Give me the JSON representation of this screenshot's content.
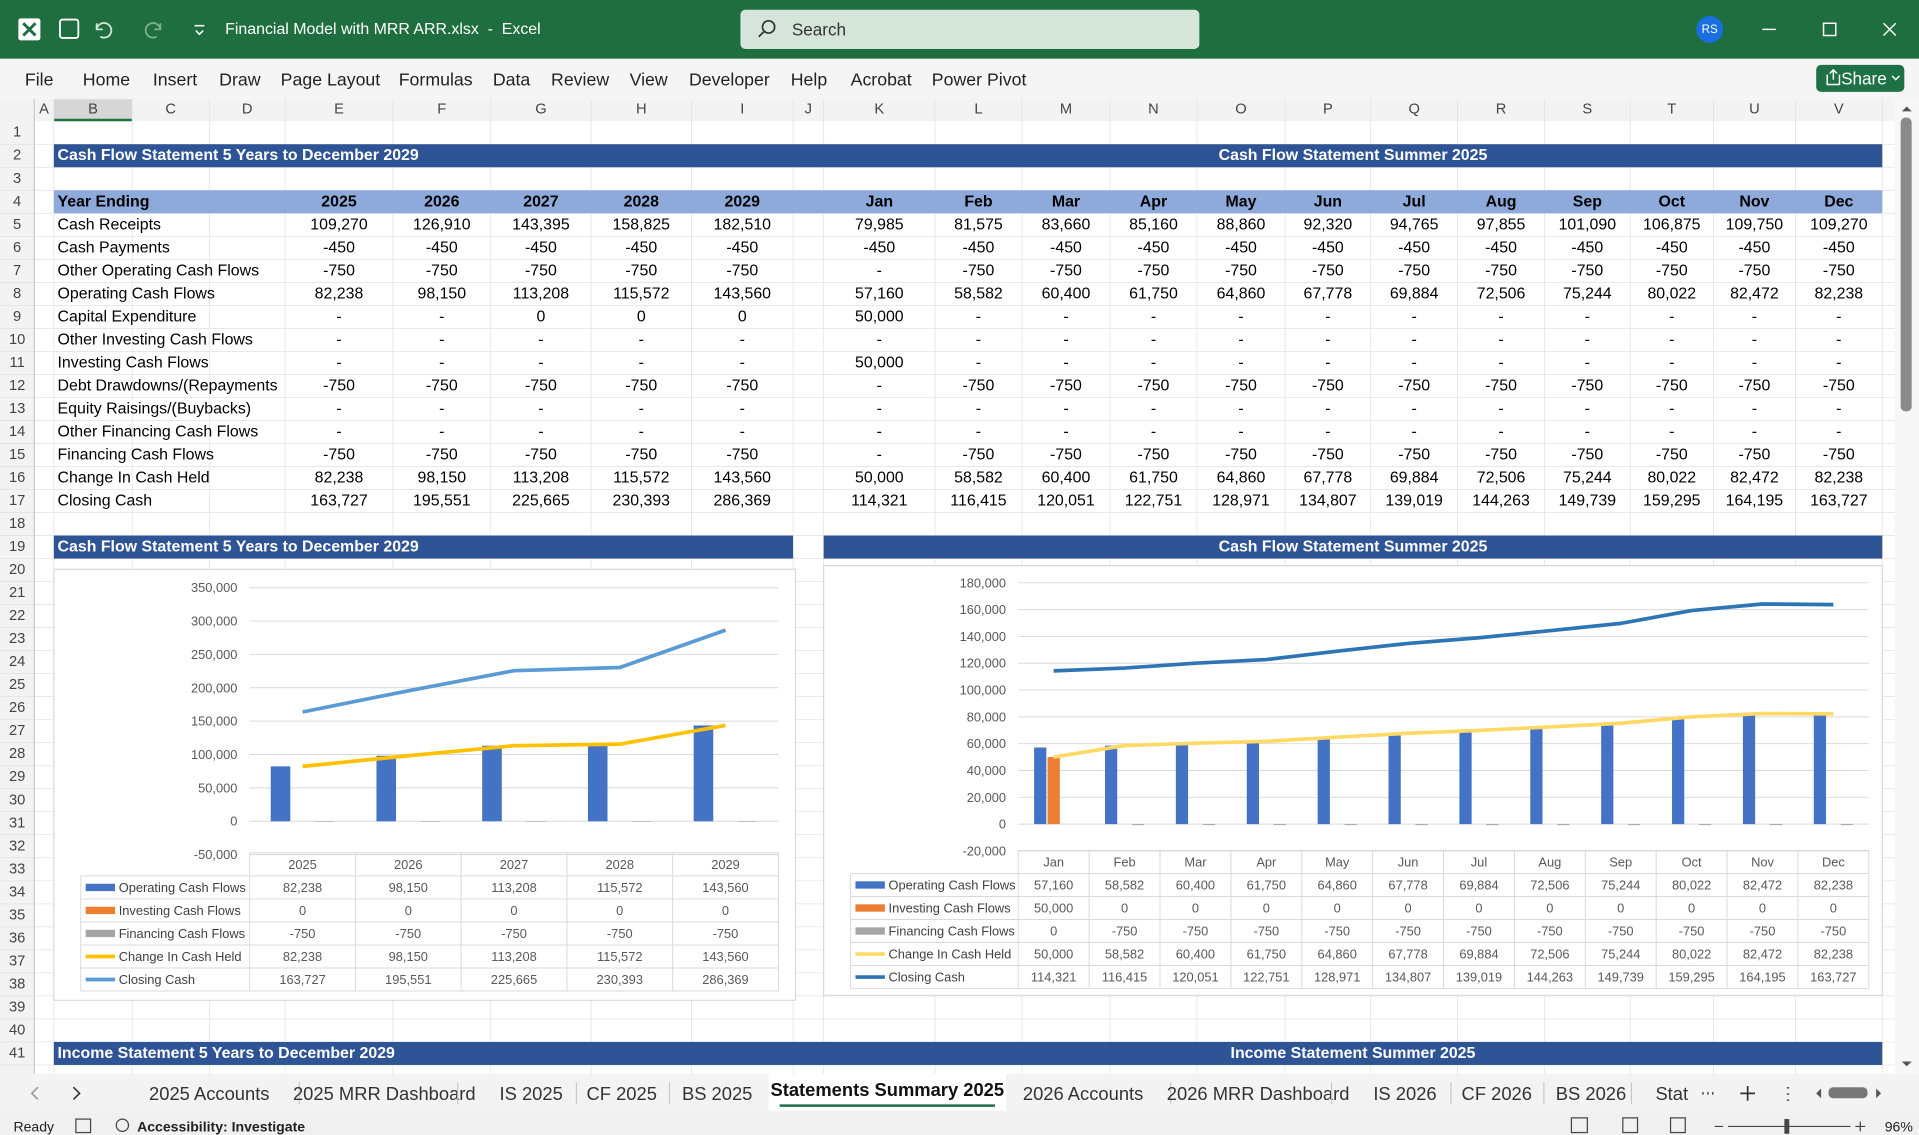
{
  "window": {
    "title": "Financial Model with MRR ARR.xlsx  -  Excel",
    "search": "Search",
    "user": "RS"
  },
  "ribbon": {
    "tabs": [
      "File",
      "Home",
      "Insert",
      "Draw",
      "Page Layout",
      "Formulas",
      "Data",
      "Review",
      "View",
      "Developer",
      "Help",
      "Acrobat",
      "Power Pivot"
    ],
    "share": "Share"
  },
  "sheet": {
    "columns": [
      "A",
      "B",
      "C",
      "D",
      "E",
      "F",
      "G",
      "H",
      "I",
      "J",
      "K",
      "L",
      "M",
      "N",
      "O",
      "P",
      "Q",
      "R",
      "S",
      "T",
      "U",
      "V"
    ],
    "rows": [
      1,
      2,
      3,
      4,
      5,
      6,
      7,
      8,
      9,
      10,
      11,
      12,
      13,
      14,
      15,
      16,
      17,
      18,
      19,
      20,
      21,
      22,
      23,
      24,
      25,
      26,
      27,
      28,
      29,
      30,
      31,
      32,
      33,
      34,
      35,
      36,
      37,
      38,
      39,
      40,
      41
    ],
    "cash_flow": {
      "title": "Cash Flow Statement 5 Years to December 2029",
      "monthly_title": "Cash Flow Statement Summer 2025",
      "header": [
        "Year Ending",
        "2025",
        "2026",
        "2027",
        "2028",
        "2029",
        "Jan",
        "Feb",
        "Mar",
        "Apr",
        "May",
        "Jun",
        "Jul",
        "Aug",
        "Sep",
        "Oct",
        "Nov",
        "Dec"
      ],
      "lines": [
        {
          "label": "Cash Receipts",
          "cells": [
            "109,270",
            "126,910",
            "143,395",
            "158,825",
            "182,510",
            "79,985",
            "81,575",
            "83,660",
            "85,160",
            "88,860",
            "92,320",
            "94,765",
            "97,855",
            "101,090",
            "106,875",
            "109,750",
            "109,270"
          ]
        },
        {
          "label": "Cash Payments",
          "cells": [
            "-450",
            "-450",
            "-450",
            "-450",
            "-450",
            "-450",
            "-450",
            "-450",
            "-450",
            "-450",
            "-450",
            "-450",
            "-450",
            "-450",
            "-450",
            "-450",
            "-450"
          ]
        },
        {
          "label": "Other Operating Cash Flows",
          "cells": [
            "-750",
            "-750",
            "-750",
            "-750",
            "-750",
            "-",
            "-750",
            "-750",
            "-750",
            "-750",
            "-750",
            "-750",
            "-750",
            "-750",
            "-750",
            "-750",
            "-750"
          ]
        },
        {
          "label": "Operating Cash Flows",
          "cells": [
            "82,238",
            "98,150",
            "113,208",
            "115,572",
            "143,560",
            "57,160",
            "58,582",
            "60,400",
            "61,750",
            "64,860",
            "67,778",
            "69,884",
            "72,506",
            "75,244",
            "80,022",
            "82,472",
            "82,238"
          ]
        },
        {
          "label": "Capital Expenditure",
          "cells": [
            "-",
            "-",
            "0",
            "0",
            "0",
            "50,000",
            "-",
            "-",
            "-",
            "-",
            "-",
            "-",
            "-",
            "-",
            "-",
            "-",
            "-"
          ]
        },
        {
          "label": "Other Investing Cash Flows",
          "cells": [
            "-",
            "-",
            "-",
            "-",
            "-",
            "-",
            "-",
            "-",
            "-",
            "-",
            "-",
            "-",
            "-",
            "-",
            "-",
            "-",
            "-"
          ]
        },
        {
          "label": "Investing Cash Flows",
          "cells": [
            "-",
            "-",
            "-",
            "-",
            "-",
            "50,000",
            "-",
            "-",
            "-",
            "-",
            "-",
            "-",
            "-",
            "-",
            "-",
            "-",
            "-"
          ]
        },
        {
          "label": "Debt Drawdowns/(Repayments",
          "cells": [
            "-750",
            "-750",
            "-750",
            "-750",
            "-750",
            "-",
            "-750",
            "-750",
            "-750",
            "-750",
            "-750",
            "-750",
            "-750",
            "-750",
            "-750",
            "-750",
            "-750"
          ]
        },
        {
          "label": "Equity Raisings/(Buybacks)",
          "cells": [
            "-",
            "-",
            "-",
            "-",
            "-",
            "-",
            "-",
            "-",
            "-",
            "-",
            "-",
            "-",
            "-",
            "-",
            "-",
            "-",
            "-"
          ]
        },
        {
          "label": "Other Financing Cash Flows",
          "cells": [
            "-",
            "-",
            "-",
            "-",
            "-",
            "-",
            "-",
            "-",
            "-",
            "-",
            "-",
            "-",
            "-",
            "-",
            "-",
            "-",
            "-"
          ]
        },
        {
          "label": "Financing Cash Flows",
          "cells": [
            "-750",
            "-750",
            "-750",
            "-750",
            "-750",
            "-",
            "-750",
            "-750",
            "-750",
            "-750",
            "-750",
            "-750",
            "-750",
            "-750",
            "-750",
            "-750",
            "-750"
          ]
        },
        {
          "label": "Change In Cash Held",
          "cells": [
            "82,238",
            "98,150",
            "113,208",
            "115,572",
            "143,560",
            "50,000",
            "58,582",
            "60,400",
            "61,750",
            "64,860",
            "67,778",
            "69,884",
            "72,506",
            "75,244",
            "80,022",
            "82,472",
            "82,238"
          ]
        },
        {
          "label": "Closing Cash",
          "cells": [
            "163,727",
            "195,551",
            "225,665",
            "230,393",
            "286,369",
            "114,321",
            "116,415",
            "120,051",
            "122,751",
            "128,971",
            "134,807",
            "139,019",
            "144,263",
            "149,739",
            "159,295",
            "164,195",
            "163,727"
          ]
        }
      ]
    },
    "income": {
      "title": "Income Statement 5 Years to December 2029",
      "monthly_title": "Income Statement Summer 2025"
    }
  },
  "chart_data": [
    {
      "type": "combo",
      "title": "Cash Flow Statement 5 Years to December 2029",
      "categories": [
        "2025",
        "2026",
        "2027",
        "2028",
        "2029"
      ],
      "ylim": [
        -50000,
        350000
      ],
      "yticks": [
        {
          "value": -50000,
          "label": "-50,000"
        },
        0,
        {
          "value": 50000,
          "label": "50,000"
        },
        {
          "value": 100000,
          "label": "100,000"
        },
        {
          "value": 150000,
          "label": "150,000"
        },
        {
          "value": 200000,
          "label": "200,000"
        },
        {
          "value": 250000,
          "label": "250,000"
        },
        {
          "value": 300000,
          "label": "300,000"
        },
        {
          "value": 350000,
          "label": "350,000"
        }
      ],
      "grid": true,
      "series": [
        {
          "name": "Operating Cash Flows",
          "type": "bar",
          "color": "#4472c4",
          "values": [
            82238,
            98150,
            113208,
            115572,
            143560
          ],
          "value_labels": [
            "82,238",
            "98,150",
            "113,208",
            "115,572",
            "143,560"
          ]
        },
        {
          "name": "Investing Cash Flows",
          "type": "bar",
          "color": "#ed7d31",
          "values": [
            0,
            0,
            0,
            0,
            0
          ]
        },
        {
          "name": "Financing Cash Flows",
          "type": "bar",
          "color": "#a5a5a5",
          "values": [
            -750,
            -750,
            -750,
            -750,
            -750
          ]
        },
        {
          "name": "Change In Cash Held",
          "type": "line",
          "color": "#ffc000",
          "values": [
            82238,
            98150,
            113208,
            115572,
            143560
          ],
          "value_labels": [
            "82,238",
            "98,150",
            "113,208",
            "115,572",
            "143,560"
          ]
        },
        {
          "name": "Closing Cash",
          "type": "line",
          "color": "#5b9bd5",
          "values": [
            163727,
            195551,
            225665,
            230393,
            286369
          ],
          "value_labels": [
            "163,727",
            "195,551",
            "225,665",
            "230,393",
            "286,369"
          ]
        }
      ]
    },
    {
      "type": "combo",
      "title": "Cash Flow Statement Summer 2025",
      "categories": [
        "Jan",
        "Feb",
        "Mar",
        "Apr",
        "May",
        "Jun",
        "Jul",
        "Aug",
        "Sep",
        "Oct",
        "Nov",
        "Dec"
      ],
      "ylim": [
        -20000,
        180000
      ],
      "yticks": [
        {
          "value": -20000,
          "label": "-20,000"
        },
        0,
        {
          "value": 20000,
          "label": "20,000"
        },
        {
          "value": 40000,
          "label": "40,000"
        },
        {
          "value": 60000,
          "label": "60,000"
        },
        {
          "value": 80000,
          "label": "80,000"
        },
        {
          "value": 100000,
          "label": "100,000"
        },
        {
          "value": 120000,
          "label": "120,000"
        },
        {
          "value": 140000,
          "label": "140,000"
        },
        {
          "value": 160000,
          "label": "160,000"
        },
        {
          "value": 180000,
          "label": "180,000"
        }
      ],
      "grid": true,
      "series": [
        {
          "name": "Operating Cash Flows",
          "type": "bar",
          "color": "#4472c4",
          "values": [
            57160,
            58582,
            60400,
            61750,
            64860,
            67778,
            69884,
            72506,
            75244,
            80022,
            82472,
            82238
          ],
          "value_labels": [
            "57,160",
            "58,582",
            "60,400",
            "61,750",
            "64,860",
            "67,778",
            "69,884",
            "72,506",
            "75,244",
            "80,022",
            "82,472",
            "82,238"
          ]
        },
        {
          "name": "Investing Cash Flows",
          "type": "bar",
          "color": "#ed7d31",
          "values": [
            50000,
            0,
            0,
            0,
            0,
            0,
            0,
            0,
            0,
            0,
            0,
            0
          ],
          "value_labels": [
            "50,000",
            "0",
            "0",
            "0",
            "0",
            "0",
            "0",
            "0",
            "0",
            "0",
            "0",
            "0"
          ]
        },
        {
          "name": "Financing Cash Flows",
          "type": "bar",
          "color": "#a5a5a5",
          "values": [
            0,
            -750,
            -750,
            -750,
            -750,
            -750,
            -750,
            -750,
            -750,
            -750,
            -750,
            -750
          ]
        },
        {
          "name": "Change In Cash Held",
          "type": "line",
          "color": "#ffd966",
          "values": [
            50000,
            58582,
            60400,
            61750,
            64860,
            67778,
            69884,
            72506,
            75244,
            80022,
            82472,
            82238
          ],
          "value_labels": [
            "50,000",
            "58,582",
            "60,400",
            "61,750",
            "64,860",
            "67,778",
            "69,884",
            "72,506",
            "75,244",
            "80,022",
            "82,472",
            "82,238"
          ]
        },
        {
          "name": "Closing Cash",
          "type": "line",
          "color": "#2e75b6",
          "values": [
            114321,
            116415,
            120051,
            122751,
            128971,
            134807,
            139019,
            144263,
            149739,
            159295,
            164195,
            163727
          ],
          "value_labels": [
            "114,321",
            "116,415",
            "120,051",
            "122,751",
            "128,971",
            "134,807",
            "139,019",
            "144,263",
            "149,739",
            "159,295",
            "164,195",
            "163,727"
          ]
        }
      ]
    }
  ],
  "tabs": {
    "sheets": [
      "2025 Accounts",
      "2025 MRR Dashboard",
      "IS 2025",
      "CF 2025",
      "BS 2025",
      "Statements Summary 2025",
      "2026 Accounts",
      "2026 MRR Dashboard",
      "IS 2026",
      "CF 2026",
      "BS 2026",
      "Stat"
    ],
    "active": 5
  },
  "status": {
    "ready": "Ready",
    "accessibility": "Accessibility: Investigate",
    "zoom": "96%"
  }
}
